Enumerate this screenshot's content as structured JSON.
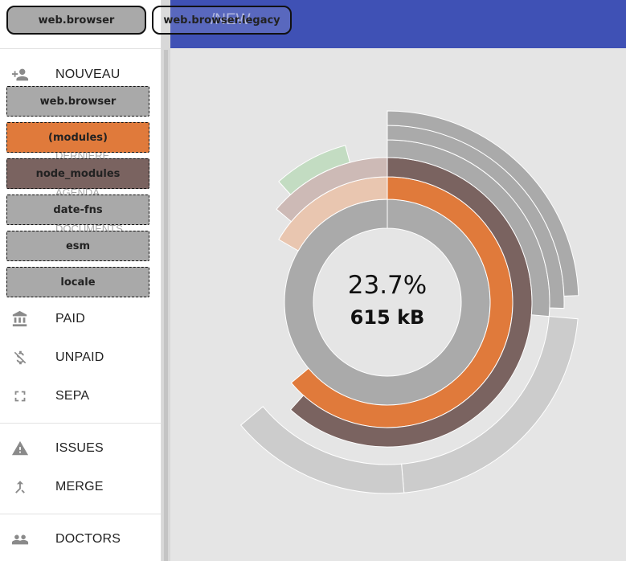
{
  "app": {
    "title": "/NEW",
    "accent": "#3f51b5"
  },
  "sidebar": {
    "items": [
      {
        "label": "NOUVEAU",
        "icon": "add-person-icon"
      },
      {
        "label": "PAID",
        "icon": "bank-icon"
      },
      {
        "label": "UNPAID",
        "icon": "money-off-icon"
      },
      {
        "label": "SEPA",
        "icon": "fullscreen-icon"
      },
      {
        "label": "ISSUES",
        "icon": "warning-icon"
      },
      {
        "label": "MERGE",
        "icon": "merge-icon"
      },
      {
        "label": "DOCTORS",
        "icon": "people-icon"
      }
    ],
    "hidden_labels": [
      "DERNIÈRE",
      "AGENDA",
      "DOCUMENTS"
    ]
  },
  "toolbar": {
    "bundle_buttons": [
      "web.browser",
      "web.browser.legacy"
    ],
    "selected": "web.browser"
  },
  "breadcrumbs": [
    {
      "label": "web.browser",
      "color": "#a9a9a9"
    },
    {
      "label": "(modules)",
      "color": "#e07a3b"
    },
    {
      "label": "node_modules",
      "color": "#7a6360"
    },
    {
      "label": "date-fns",
      "color": "#a9a9a9"
    },
    {
      "label": "esm",
      "color": "#a9a9a9"
    },
    {
      "label": "locale",
      "color": "#a9a9a9"
    }
  ],
  "chart_data": {
    "type": "sunburst",
    "selected_share_percent": 23.7,
    "center_text": {
      "percent": "23.7%",
      "size": "615 kB"
    },
    "highlighted_path": [
      "web.browser",
      "(modules)",
      "node_modules",
      "date-fns",
      "esm",
      "locale"
    ],
    "colors": {
      "root": "#aaaaaa",
      "modules": "#e07a3b",
      "node_modules": "#7a6360",
      "faded_modules": "#e9c6b0",
      "faded_node_modules": "#cdbab6",
      "other": "#cccccc",
      "green": "#c3dcc2",
      "purple": "#cfc0e2",
      "background": "#e5e5e5"
    }
  }
}
